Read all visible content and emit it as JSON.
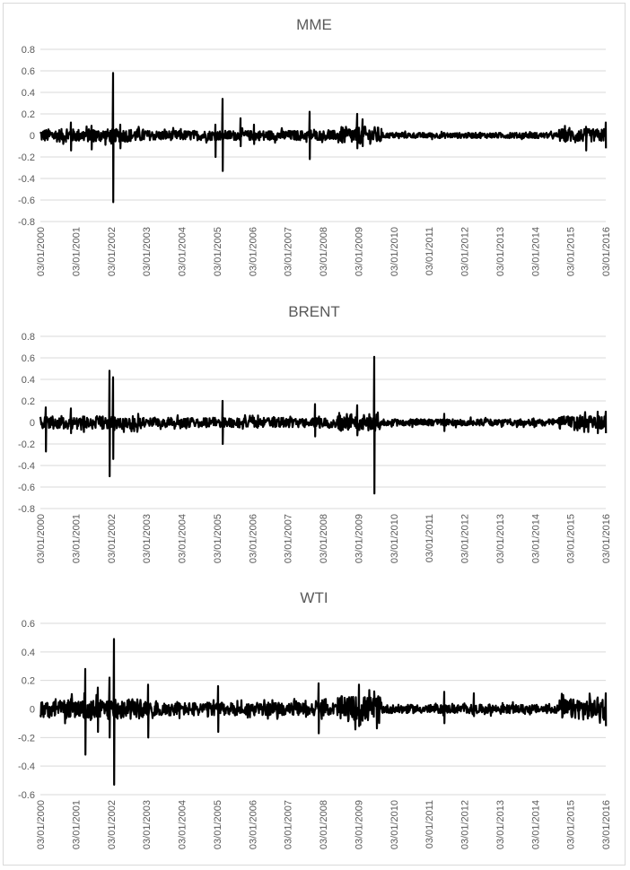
{
  "chart_data": [
    {
      "type": "line",
      "title": "MME",
      "ylim": [
        -0.8,
        0.8
      ],
      "yticks": [
        0.8,
        0.6,
        0.4,
        0.2,
        0,
        -0.2,
        -0.4,
        -0.6,
        -0.8
      ],
      "xlim": [
        "2000-01-03",
        "2016-01-03"
      ],
      "x_tick_labels": [
        "03/01/2000",
        "03/01/2001",
        "03/01/2002",
        "03/01/2003",
        "03/01/2004",
        "03/01/2005",
        "03/01/2006",
        "03/01/2007",
        "03/01/2008",
        "03/01/2009",
        "03/01/2010",
        "03/01/2011",
        "03/01/2012",
        "03/01/2013",
        "03/01/2014",
        "03/01/2015",
        "03/01/2016"
      ],
      "grid": true,
      "series_color": "#000000",
      "volatility_band": [
        {
          "from": "2000-01-03",
          "to": "2003-01-01",
          "amplitude": 0.06
        },
        {
          "from": "2003-01-01",
          "to": "2008-06-01",
          "amplitude": 0.045
        },
        {
          "from": "2008-06-01",
          "to": "2009-09-01",
          "amplitude": 0.08
        },
        {
          "from": "2009-09-01",
          "to": "2014-09-01",
          "amplitude": 0.025
        },
        {
          "from": "2014-09-01",
          "to": "2016-01-03",
          "amplitude": 0.06
        }
      ],
      "spikes": [
        {
          "date": "2000-11-15",
          "high": 0.12,
          "low": -0.14
        },
        {
          "date": "2001-06-15",
          "high": 0.09,
          "low": -0.13
        },
        {
          "date": "2002-01-20",
          "high": 0.58,
          "low": -0.62
        },
        {
          "date": "2002-04-10",
          "high": 0.1,
          "low": -0.12
        },
        {
          "date": "2004-12-20",
          "high": 0.1,
          "low": -0.2
        },
        {
          "date": "2005-03-01",
          "high": 0.34,
          "low": -0.33
        },
        {
          "date": "2005-08-30",
          "high": 0.16,
          "low": -0.1
        },
        {
          "date": "2006-01-15",
          "high": 0.1,
          "low": -0.08
        },
        {
          "date": "2007-08-20",
          "high": 0.22,
          "low": -0.22
        },
        {
          "date": "2008-12-20",
          "high": 0.2,
          "low": -0.12
        },
        {
          "date": "2009-02-10",
          "high": 0.15,
          "low": -0.1
        },
        {
          "date": "2015-06-15",
          "high": 0.08,
          "low": -0.14
        },
        {
          "date": "2016-01-01",
          "high": 0.12,
          "low": -0.12
        }
      ]
    },
    {
      "type": "line",
      "title": "BRENT",
      "ylim": [
        -0.8,
        0.8
      ],
      "yticks": [
        0.8,
        0.6,
        0.4,
        0.2,
        0,
        -0.2,
        -0.4,
        -0.6,
        -0.8
      ],
      "xlim": [
        "2000-01-03",
        "2016-01-03"
      ],
      "x_tick_labels": [
        "03/01/2000",
        "03/01/2001",
        "03/01/2002",
        "03/01/2003",
        "03/01/2004",
        "03/01/2005",
        "03/01/2006",
        "03/01/2007",
        "03/01/2008",
        "03/01/2009",
        "03/01/2010",
        "03/01/2011",
        "03/01/2012",
        "03/01/2013",
        "03/01/2014",
        "03/01/2015",
        "03/01/2016"
      ],
      "grid": true,
      "series_color": "#000000",
      "volatility_band": [
        {
          "from": "2000-01-03",
          "to": "2003-01-01",
          "amplitude": 0.06
        },
        {
          "from": "2003-01-01",
          "to": "2008-06-01",
          "amplitude": 0.045
        },
        {
          "from": "2008-06-01",
          "to": "2009-09-01",
          "amplitude": 0.08
        },
        {
          "from": "2009-09-01",
          "to": "2014-09-01",
          "amplitude": 0.03
        },
        {
          "from": "2014-09-01",
          "to": "2016-01-03",
          "amplitude": 0.06
        }
      ],
      "spikes": [
        {
          "date": "2000-03-01",
          "high": 0.14,
          "low": -0.27
        },
        {
          "date": "2000-11-15",
          "high": 0.13,
          "low": -0.1
        },
        {
          "date": "2001-12-20",
          "high": 0.48,
          "low": -0.5
        },
        {
          "date": "2002-01-20",
          "high": 0.42,
          "low": -0.34
        },
        {
          "date": "2005-03-01",
          "high": 0.2,
          "low": -0.2
        },
        {
          "date": "2007-10-15",
          "high": 0.17,
          "low": -0.13
        },
        {
          "date": "2008-12-20",
          "high": 0.16,
          "low": -0.12
        },
        {
          "date": "2009-06-15",
          "high": 0.61,
          "low": -0.66
        },
        {
          "date": "2011-06-10",
          "high": 0.08,
          "low": -0.08
        },
        {
          "date": "2015-10-15",
          "high": 0.1,
          "low": -0.1
        },
        {
          "date": "2016-01-01",
          "high": 0.1,
          "low": -0.1
        }
      ]
    },
    {
      "type": "line",
      "title": "WTI",
      "ylim": [
        -0.6,
        0.6
      ],
      "yticks": [
        0.6,
        0.4,
        0.2,
        0,
        -0.2,
        -0.4,
        -0.6
      ],
      "xlim": [
        "2000-01-03",
        "2016-01-03"
      ],
      "x_tick_labels": [
        "03/01/2000",
        "03/01/2001",
        "03/01/2002",
        "03/01/2003",
        "03/01/2004",
        "03/01/2005",
        "03/01/2006",
        "03/01/2007",
        "03/01/2008",
        "03/01/2009",
        "03/01/2010",
        "03/01/2011",
        "03/01/2012",
        "03/01/2013",
        "03/01/2014",
        "03/01/2015",
        "03/01/2016"
      ],
      "grid": true,
      "series_color": "#000000",
      "volatility_band": [
        {
          "from": "2000-01-03",
          "to": "2003-01-01",
          "amplitude": 0.07
        },
        {
          "from": "2003-01-01",
          "to": "2008-06-01",
          "amplitude": 0.045
        },
        {
          "from": "2008-06-01",
          "to": "2009-09-01",
          "amplitude": 0.09
        },
        {
          "from": "2009-09-01",
          "to": "2014-09-01",
          "amplitude": 0.03
        },
        {
          "from": "2014-09-01",
          "to": "2016-01-03",
          "amplitude": 0.07
        }
      ],
      "spikes": [
        {
          "date": "2001-04-15",
          "high": 0.28,
          "low": -0.32
        },
        {
          "date": "2001-08-15",
          "high": 0.15,
          "low": -0.16
        },
        {
          "date": "2001-12-20",
          "high": 0.22,
          "low": -0.2
        },
        {
          "date": "2002-02-01",
          "high": 0.49,
          "low": -0.53
        },
        {
          "date": "2003-01-20",
          "high": 0.17,
          "low": -0.2
        },
        {
          "date": "2005-01-15",
          "high": 0.16,
          "low": -0.16
        },
        {
          "date": "2007-11-15",
          "high": 0.18,
          "low": -0.17
        },
        {
          "date": "2009-01-10",
          "high": 0.17,
          "low": -0.12
        },
        {
          "date": "2011-06-10",
          "high": 0.12,
          "low": -0.1
        },
        {
          "date": "2012-04-10",
          "high": 0.11,
          "low": -0.05
        },
        {
          "date": "2016-01-01",
          "high": 0.11,
          "low": -0.12
        }
      ]
    }
  ]
}
